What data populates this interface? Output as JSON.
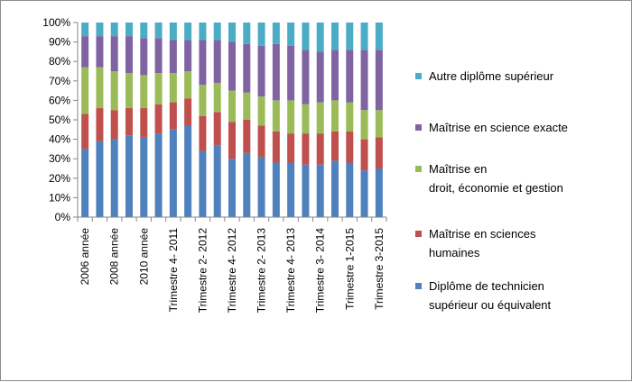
{
  "chart_data": {
    "type": "bar",
    "stacked": "percent",
    "ylim": [
      0,
      100
    ],
    "y_ticks": [
      "0%",
      "10%",
      "20%",
      "30%",
      "40%",
      "50%",
      "60%",
      "70%",
      "80%",
      "90%",
      "100%"
    ],
    "grid": false,
    "legend_position": "right",
    "x_tick_labels": [
      "2006 année",
      "2008 année",
      "2010 année",
      "Trimestre 4- 2011",
      "Trimestre 2- 2012",
      "Trimestre 4- 2012",
      "Trimestre 2- 2013",
      "Trimestre 4- 2013",
      "Trimestre 3- 2014",
      "Trimestre 1-2015",
      "Trimestre 3-2015"
    ],
    "categories": [
      "2006 année",
      "",
      "2008 année",
      "",
      "2010 année",
      "",
      "Trimestre 4- 2011",
      "",
      "Trimestre 2- 2012",
      "",
      "Trimestre 4- 2012",
      "",
      "Trimestre 2- 2013",
      "",
      "Trimestre 4- 2013",
      "",
      "Trimestre 3- 2014",
      "",
      "Trimestre 1-2015",
      "",
      "Trimestre 3-2015"
    ],
    "series": [
      {
        "name": "Diplôme de technicien supérieur ou équivalent",
        "color": "#4F81BD",
        "values": [
          35,
          39,
          40,
          42,
          41,
          43,
          45,
          47,
          34,
          37,
          30,
          33,
          31,
          28,
          28,
          27,
          27,
          29,
          28,
          24,
          25
        ]
      },
      {
        "name": "Maîtrise en sciences humaines",
        "color": "#C0504D",
        "values": [
          18,
          17,
          15,
          14,
          15,
          15,
          14,
          14,
          18,
          17,
          19,
          17,
          16,
          16,
          15,
          16,
          16,
          15,
          16,
          16,
          16
        ]
      },
      {
        "name": "Maîtrise en droit, économie et gestion",
        "color": "#9BBB59",
        "values": [
          24,
          21,
          20,
          18,
          17,
          16,
          15,
          14,
          16,
          15,
          16,
          14,
          15,
          16,
          17,
          15,
          16,
          16,
          15,
          15,
          14
        ]
      },
      {
        "name": "Maîtrise en science exacte",
        "color": "#8064A2",
        "values": [
          16,
          16,
          18,
          19,
          19,
          18,
          17,
          16,
          23,
          22,
          25,
          25,
          26,
          29,
          28,
          28,
          26,
          26,
          27,
          31,
          31
        ]
      },
      {
        "name": "Autre diplôme supérieur",
        "color": "#4BACC6",
        "values": [
          7,
          7,
          7,
          7,
          8,
          8,
          9,
          9,
          9,
          9,
          10,
          11,
          12,
          11,
          12,
          14,
          15,
          14,
          14,
          14,
          14
        ]
      }
    ],
    "legend_entries": [
      {
        "label_lines": [
          "Autre diplôme supérieur"
        ],
        "color": "#4BACC6"
      },
      {
        "label_lines": [
          "Maîtrise en science exacte"
        ],
        "color": "#8064A2"
      },
      {
        "label_lines": [
          "Maîtrise en",
          "droit, économie et gestion"
        ],
        "color": "#9BBB59"
      },
      {
        "label_lines": [
          "Maîtrise en sciences",
          "humaines"
        ],
        "color": "#C0504D"
      },
      {
        "label_lines": [
          "Diplôme de technicien",
          "supérieur ou équivalent"
        ],
        "color": "#4F81BD"
      }
    ]
  }
}
